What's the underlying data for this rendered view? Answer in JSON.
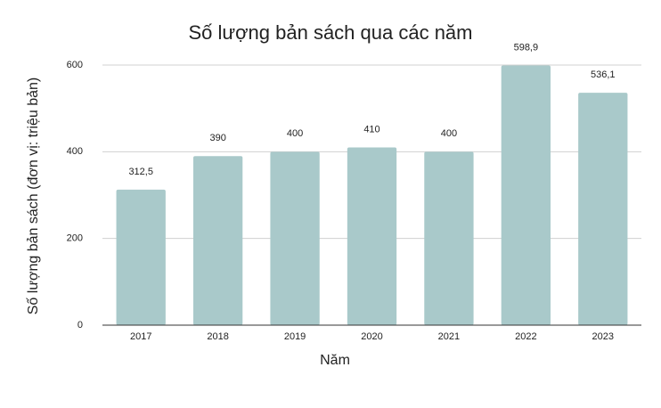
{
  "chart_data": {
    "type": "bar",
    "title": "Số lượng bản sách qua các năm",
    "x_label": "Năm",
    "y_label": "Số lượng bản sách (đơn vị: triệu bản)",
    "categories": [
      "2017",
      "2018",
      "2019",
      "2020",
      "2021",
      "2022",
      "2023"
    ],
    "values": [
      312.5,
      390,
      400,
      410,
      400,
      598.9,
      536.1
    ],
    "value_labels": [
      "312,5",
      "390",
      "400",
      "410",
      "400",
      "598,9",
      "536,1"
    ],
    "color": "#a9c9ca",
    "ylim": [
      0,
      600
    ],
    "yticks": [
      0,
      200,
      400,
      600
    ],
    "grid": true
  }
}
